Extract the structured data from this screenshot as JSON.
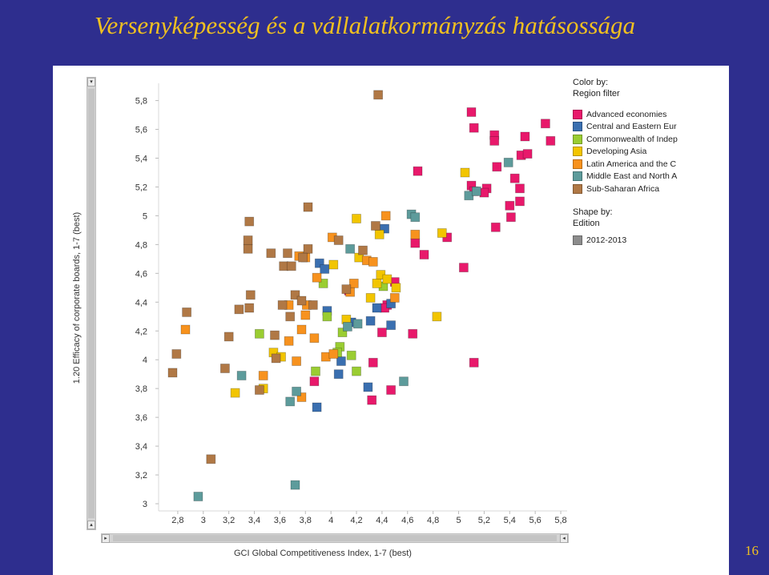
{
  "slide": {
    "title": "Versenyképesség és a vállalatkormányzás hatásossága",
    "page_number": "16"
  },
  "legend": {
    "color_by_line1": "Color by:",
    "color_by_line2": "Region filter",
    "shape_by_line1": "Shape by:",
    "shape_by_line2": "Edition",
    "shape_label": "2012-2013",
    "shape_color": "#8c8c8c"
  },
  "chart_data": {
    "type": "scatter",
    "title": "",
    "xlabel": "GCI Global Competitiveness Index, 1-7 (best)",
    "ylabel": "1.20 Efficacy of corporate boards, 1-7 (best)",
    "xlim": [
      2.65,
      5.85
    ],
    "ylim": [
      2.95,
      5.92
    ],
    "x_ticks": [
      "2,8",
      "3",
      "3,2",
      "3,4",
      "3,6",
      "3,8",
      "4",
      "4,2",
      "4,4",
      "4,6",
      "4,8",
      "5",
      "5,2",
      "5,4",
      "5,6",
      "5,8"
    ],
    "y_ticks": [
      "3",
      "3,2",
      "3,4",
      "3,6",
      "3,8",
      "4",
      "4,2",
      "4,4",
      "4,6",
      "4,8",
      "5",
      "5,2",
      "5,4",
      "5,6",
      "5,8"
    ],
    "grid": false,
    "legend_position": "right",
    "series": [
      {
        "name": "Advanced economies",
        "color": "#e8196b",
        "points": [
          [
            5.1,
            5.72
          ],
          [
            5.12,
            5.61
          ],
          [
            5.28,
            5.56
          ],
          [
            5.28,
            5.52
          ],
          [
            5.68,
            5.64
          ],
          [
            5.72,
            5.52
          ],
          [
            5.52,
            5.55
          ],
          [
            5.49,
            5.42
          ],
          [
            5.54,
            5.43
          ],
          [
            5.3,
            5.34
          ],
          [
            4.68,
            5.31
          ],
          [
            5.44,
            5.26
          ],
          [
            5.48,
            5.19
          ],
          [
            5.1,
            5.21
          ],
          [
            5.12,
            5.17
          ],
          [
            5.22,
            5.19
          ],
          [
            5.2,
            5.16
          ],
          [
            5.4,
            5.07
          ],
          [
            5.48,
            5.1
          ],
          [
            5.41,
            4.99
          ],
          [
            5.29,
            4.92
          ],
          [
            4.91,
            4.85
          ],
          [
            4.66,
            4.81
          ],
          [
            4.73,
            4.73
          ],
          [
            5.04,
            4.64
          ],
          [
            4.5,
            4.54
          ],
          [
            4.44,
            4.38
          ],
          [
            4.42,
            4.36
          ],
          [
            4.64,
            4.18
          ],
          [
            4.4,
            4.19
          ],
          [
            4.33,
            3.98
          ],
          [
            5.12,
            3.98
          ],
          [
            4.47,
            3.79
          ],
          [
            4.32,
            3.72
          ],
          [
            4.14,
            4.48
          ],
          [
            3.87,
            3.85
          ]
        ]
      },
      {
        "name": "Central and Eastern Eur",
        "color": "#3a6fb0",
        "points": [
          [
            3.91,
            4.67
          ],
          [
            3.95,
            4.63
          ],
          [
            4.42,
            4.91
          ],
          [
            3.97,
            4.34
          ],
          [
            4.16,
            4.26
          ],
          [
            4.31,
            4.27
          ],
          [
            4.36,
            4.36
          ],
          [
            4.47,
            4.39
          ],
          [
            4.47,
            4.24
          ],
          [
            4.08,
            3.99
          ],
          [
            4.06,
            3.9
          ],
          [
            4.29,
            3.81
          ],
          [
            3.89,
            3.67
          ]
        ]
      },
      {
        "name": "Commonwealth of Indep",
        "color": "#9acd32",
        "points": [
          [
            3.44,
            4.18
          ],
          [
            3.94,
            4.53
          ],
          [
            3.97,
            4.3
          ],
          [
            4.41,
            4.51
          ],
          [
            4.09,
            4.19
          ],
          [
            4.07,
            4.09
          ],
          [
            4.05,
            4.05
          ],
          [
            4.16,
            4.03
          ],
          [
            4.2,
            3.92
          ],
          [
            3.88,
            3.92
          ]
        ]
      },
      {
        "name": "Developing Asia",
        "color": "#f2c500",
        "points": [
          [
            4.2,
            4.98
          ],
          [
            4.38,
            4.87
          ],
          [
            4.39,
            4.59
          ],
          [
            4.22,
            4.71
          ],
          [
            4.02,
            4.66
          ],
          [
            4.36,
            4.53
          ],
          [
            4.51,
            4.5
          ],
          [
            4.31,
            4.43
          ],
          [
            4.12,
            4.28
          ],
          [
            5.05,
            5.3
          ],
          [
            4.87,
            4.88
          ],
          [
            4.83,
            4.3
          ],
          [
            3.55,
            4.05
          ],
          [
            3.61,
            4.02
          ],
          [
            3.47,
            3.8
          ],
          [
            3.25,
            3.77
          ],
          [
            4.44,
            4.56
          ]
        ]
      },
      {
        "name": "Latin America and the C",
        "color": "#f7921e",
        "points": [
          [
            4.43,
            5.0
          ],
          [
            4.66,
            4.87
          ],
          [
            4.01,
            4.85
          ],
          [
            4.28,
            4.69
          ],
          [
            4.33,
            4.68
          ],
          [
            3.75,
            4.72
          ],
          [
            3.8,
            4.71
          ],
          [
            3.89,
            4.57
          ],
          [
            4.18,
            4.53
          ],
          [
            3.67,
            4.38
          ],
          [
            3.81,
            4.38
          ],
          [
            3.8,
            4.31
          ],
          [
            3.77,
            4.21
          ],
          [
            3.87,
            4.15
          ],
          [
            4.15,
            4.47
          ],
          [
            4.5,
            4.43
          ],
          [
            2.86,
            4.21
          ],
          [
            3.67,
            4.13
          ],
          [
            3.96,
            4.02
          ],
          [
            4.02,
            4.04
          ],
          [
            3.73,
            3.99
          ],
          [
            3.47,
            3.89
          ],
          [
            3.77,
            3.74
          ]
        ]
      },
      {
        "name": "Middle East and North A",
        "color": "#5d9b9b",
        "points": [
          [
            4.63,
            5.01
          ],
          [
            4.66,
            4.99
          ],
          [
            5.08,
            5.14
          ],
          [
            5.14,
            5.17
          ],
          [
            5.39,
            5.37
          ],
          [
            4.15,
            4.77
          ],
          [
            4.21,
            4.25
          ],
          [
            4.13,
            4.23
          ],
          [
            4.57,
            3.85
          ],
          [
            3.3,
            3.89
          ],
          [
            3.68,
            3.71
          ],
          [
            3.73,
            3.78
          ],
          [
            2.96,
            3.05
          ],
          [
            3.72,
            3.13
          ]
        ]
      },
      {
        "name": "Sub-Saharan Africa",
        "color": "#b07845",
        "points": [
          [
            4.37,
            5.84
          ],
          [
            3.82,
            5.06
          ],
          [
            3.36,
            4.96
          ],
          [
            3.35,
            4.83
          ],
          [
            3.35,
            4.77
          ],
          [
            3.53,
            4.74
          ],
          [
            3.66,
            4.74
          ],
          [
            3.82,
            4.77
          ],
          [
            3.78,
            4.71
          ],
          [
            3.63,
            4.65
          ],
          [
            3.69,
            4.65
          ],
          [
            4.06,
            4.83
          ],
          [
            4.35,
            4.93
          ],
          [
            4.25,
            4.76
          ],
          [
            4.12,
            4.49
          ],
          [
            3.37,
            4.45
          ],
          [
            3.62,
            4.38
          ],
          [
            3.72,
            4.45
          ],
          [
            3.77,
            4.41
          ],
          [
            3.86,
            4.38
          ],
          [
            3.28,
            4.35
          ],
          [
            3.36,
            4.36
          ],
          [
            3.68,
            4.3
          ],
          [
            3.56,
            4.17
          ],
          [
            2.87,
            4.33
          ],
          [
            3.2,
            4.16
          ],
          [
            2.79,
            4.04
          ],
          [
            3.57,
            4.01
          ],
          [
            2.76,
            3.91
          ],
          [
            3.17,
            3.94
          ],
          [
            3.44,
            3.79
          ],
          [
            3.06,
            3.31
          ]
        ]
      }
    ]
  }
}
